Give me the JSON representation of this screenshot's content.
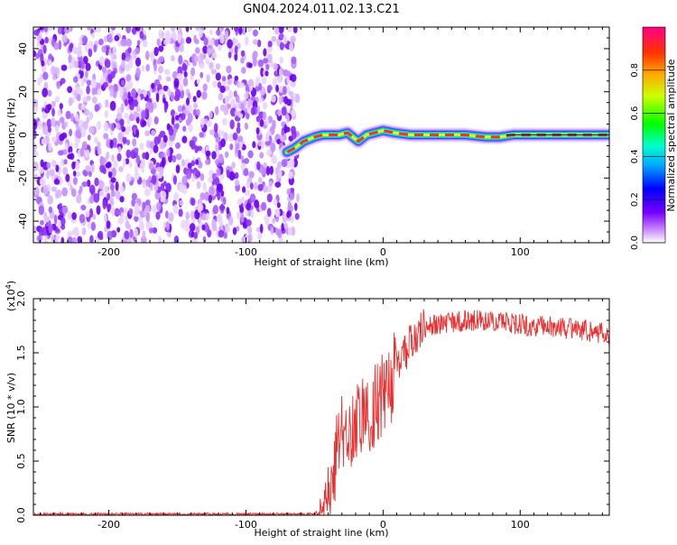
{
  "title": "GN04.2024.011.02.13.C21",
  "chart_data": [
    {
      "type": "heatmap",
      "title": "GN04.2024.011.02.13.C21",
      "xlabel": "Height of straight line (km)",
      "ylabel": "Frequency (Hz)",
      "xlim": [
        -255,
        165
      ],
      "ylim": [
        -50,
        50
      ],
      "x_ticks": [
        -200,
        -100,
        0,
        100
      ],
      "y_ticks": [
        -40,
        -20,
        0,
        20,
        40
      ],
      "noise_region_x": [
        -255,
        -62
      ],
      "signal_track": {
        "x": [
          -70,
          -64,
          -58,
          -50,
          -44,
          -38,
          -32,
          -26,
          -22,
          -18,
          -12,
          -6,
          0,
          8,
          20,
          40,
          60,
          75,
          85,
          95,
          120,
          165
        ],
        "y": [
          -8,
          -6,
          -3,
          -1,
          0,
          0,
          0,
          1,
          -1,
          -3,
          0,
          1,
          2,
          1,
          0,
          0,
          0,
          -1,
          -1,
          0,
          0,
          0
        ]
      },
      "colorbar": {
        "label": "Normalized spectral amplitude",
        "ticks": [
          "0.0",
          "0.2",
          "0.4",
          "0.6",
          "0.8"
        ],
        "range": [
          0,
          1
        ]
      }
    },
    {
      "type": "line",
      "xlabel": "Height of straight line (km)",
      "ylabel": "SNR (10 * v/v)",
      "y_multiplier": "(x10",
      "y_multiplier_exp": "4",
      "y_multiplier_close": ")",
      "xlim": [
        -255,
        165
      ],
      "ylim": [
        0,
        2.0
      ],
      "x_ticks": [
        -200,
        -100,
        0,
        100
      ],
      "y_ticks": [
        "0.0",
        "0.5",
        "1.0",
        "1.5",
        "2.0"
      ],
      "series": [
        {
          "name": "SNR",
          "color": "#e83030",
          "x": [
            -255,
            -200,
            -100,
            -50,
            -44,
            -40,
            -36,
            -34,
            -32,
            -30,
            -28,
            -24,
            -20,
            -16,
            -12,
            -8,
            -4,
            0,
            4,
            8,
            12,
            16,
            20,
            25,
            30,
            40,
            50,
            60,
            70,
            80,
            90,
            100,
            110,
            120,
            130,
            140,
            150,
            160,
            165
          ],
          "y": [
            0.01,
            0.01,
            0.01,
            0.01,
            0.05,
            0.2,
            0.4,
            0.55,
            0.7,
            0.78,
            0.72,
            0.8,
            0.85,
            0.9,
            0.95,
            1.0,
            1.05,
            1.1,
            1.2,
            1.3,
            1.4,
            1.5,
            1.6,
            1.68,
            1.72,
            1.76,
            1.78,
            1.8,
            1.8,
            1.79,
            1.78,
            1.76,
            1.75,
            1.74,
            1.73,
            1.72,
            1.7,
            1.68,
            1.65
          ]
        }
      ]
    }
  ]
}
